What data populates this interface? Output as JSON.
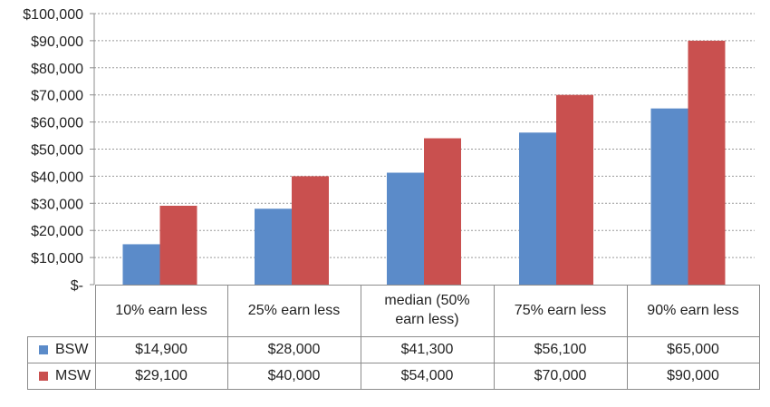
{
  "chart_data": {
    "type": "bar",
    "categories": [
      "10% earn less",
      "25% earn less",
      "median (50% earn less)",
      "75% earn less",
      "90% earn less"
    ],
    "series": [
      {
        "name": "BSW",
        "color": "#5b8bc9",
        "values": [
          14900,
          28000,
          41300,
          56100,
          65000
        ],
        "labels": [
          "$14,900",
          "$28,000",
          "$41,300",
          "$56,100",
          "$65,000"
        ]
      },
      {
        "name": "MSW",
        "color": "#c9504f",
        "values": [
          29100,
          40000,
          54000,
          70000,
          90000
        ],
        "labels": [
          "$29,100",
          "$40,000",
          "$54,000",
          "$70,000",
          "$90,000"
        ]
      }
    ],
    "ylim": [
      0,
      100000
    ],
    "yticks": [
      0,
      10000,
      20000,
      30000,
      40000,
      50000,
      60000,
      70000,
      80000,
      90000,
      100000
    ],
    "ytick_labels": [
      "$-",
      "$10,000",
      "$20,000",
      "$30,000",
      "$40,000",
      "$50,000",
      "$60,000",
      "$70,000",
      "$80,000",
      "$90,000",
      "$100,000"
    ],
    "grid": true,
    "legend": "data-table"
  }
}
